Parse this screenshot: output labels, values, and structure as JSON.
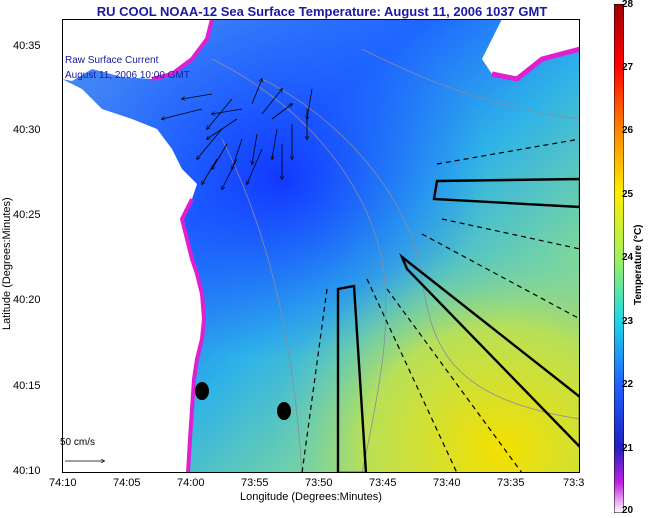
{
  "title": "RU COOL  NOAA-12  Sea Surface Temperature:  August 11, 2006 1037 GMT",
  "overlay": {
    "line1": "Raw Surface Current",
    "line2": "August 11, 2006 10:00 GMT",
    "scale_label": "50 cm/s"
  },
  "axes": {
    "xlabel": "Longitude (Degrees:Minutes)",
    "ylabel": "Latitude (Degrees:Minutes)",
    "x_ticks": [
      "74:10",
      "74:05",
      "74:00",
      "73:55",
      "73:50",
      "73:45",
      "73:40",
      "73:35",
      "73:3"
    ],
    "y_ticks": [
      "40:35",
      "40:30",
      "40:25",
      "40:20",
      "40:15",
      "40:10"
    ]
  },
  "colorbar": {
    "label": "Temperature (°C)",
    "ticks": [
      "28",
      "27",
      "26",
      "25",
      "24",
      "23",
      "22",
      "21",
      "20"
    ],
    "range": [
      20,
      28
    ]
  },
  "colors": {
    "title": "#1a1aa0",
    "land": "#ffffff",
    "warm_water": "#e8d800",
    "cool_water": "#2a6cff"
  }
}
